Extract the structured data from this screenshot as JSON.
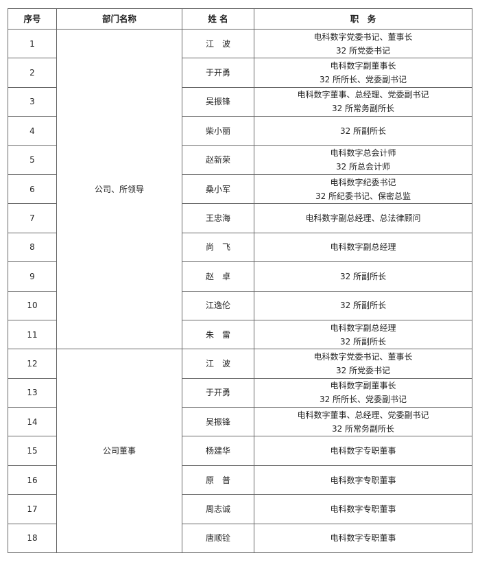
{
  "headers": {
    "seq": "序号",
    "dept": "部门名称",
    "name": "姓 名",
    "position": "职　务"
  },
  "groups": [
    {
      "dept": "公司、所领导",
      "rows": [
        {
          "seq": "1",
          "name": "江　波",
          "lines": [
            "电科数字党委书记、董事长",
            "32 所党委书记"
          ]
        },
        {
          "seq": "2",
          "name": "于开勇",
          "lines": [
            "电科数字副董事长",
            "32 所所长、党委副书记"
          ]
        },
        {
          "seq": "3",
          "name": "吴振锋",
          "lines": [
            "电科数字董事、总经理、党委副书记",
            "32 所常务副所长"
          ]
        },
        {
          "seq": "4",
          "name": "柴小丽",
          "lines": [
            "32 所副所长"
          ]
        },
        {
          "seq": "5",
          "name": "赵新荣",
          "lines": [
            "电科数字总会计师",
            "32 所总会计师"
          ]
        },
        {
          "seq": "6",
          "name": "桑小军",
          "lines": [
            "电科数字纪委书记",
            "32 所纪委书记、保密总监"
          ]
        },
        {
          "seq": "7",
          "name": "王忠海",
          "lines": [
            "电科数字副总经理、总法律顾问"
          ]
        },
        {
          "seq": "8",
          "name": "尚　飞",
          "lines": [
            "电科数字副总经理"
          ]
        },
        {
          "seq": "9",
          "name": "赵　卓",
          "lines": [
            "32 所副所长"
          ]
        },
        {
          "seq": "10",
          "name": "江逸伦",
          "lines": [
            "32 所副所长"
          ]
        },
        {
          "seq": "11",
          "name": "朱　雷",
          "lines": [
            "电科数字副总经理",
            "32 所副所长"
          ]
        }
      ]
    },
    {
      "dept": "公司董事",
      "rows": [
        {
          "seq": "12",
          "name": "江　波",
          "lines": [
            "电科数字党委书记、董事长",
            "32 所党委书记"
          ]
        },
        {
          "seq": "13",
          "name": "于开勇",
          "lines": [
            "电科数字副董事长",
            "32 所所长、党委副书记"
          ]
        },
        {
          "seq": "14",
          "name": "吴振锋",
          "lines": [
            "电科数字董事、总经理、党委副书记",
            "32 所常务副所长"
          ]
        },
        {
          "seq": "15",
          "name": "杨建华",
          "lines": [
            "电科数字专职董事"
          ]
        },
        {
          "seq": "16",
          "name": "原　普",
          "lines": [
            "电科数字专职董事"
          ]
        },
        {
          "seq": "17",
          "name": "周志诚",
          "lines": [
            "电科数字专职董事"
          ]
        },
        {
          "seq": "18",
          "name": "唐顺铨",
          "lines": [
            "电科数字专职董事"
          ]
        }
      ]
    }
  ]
}
